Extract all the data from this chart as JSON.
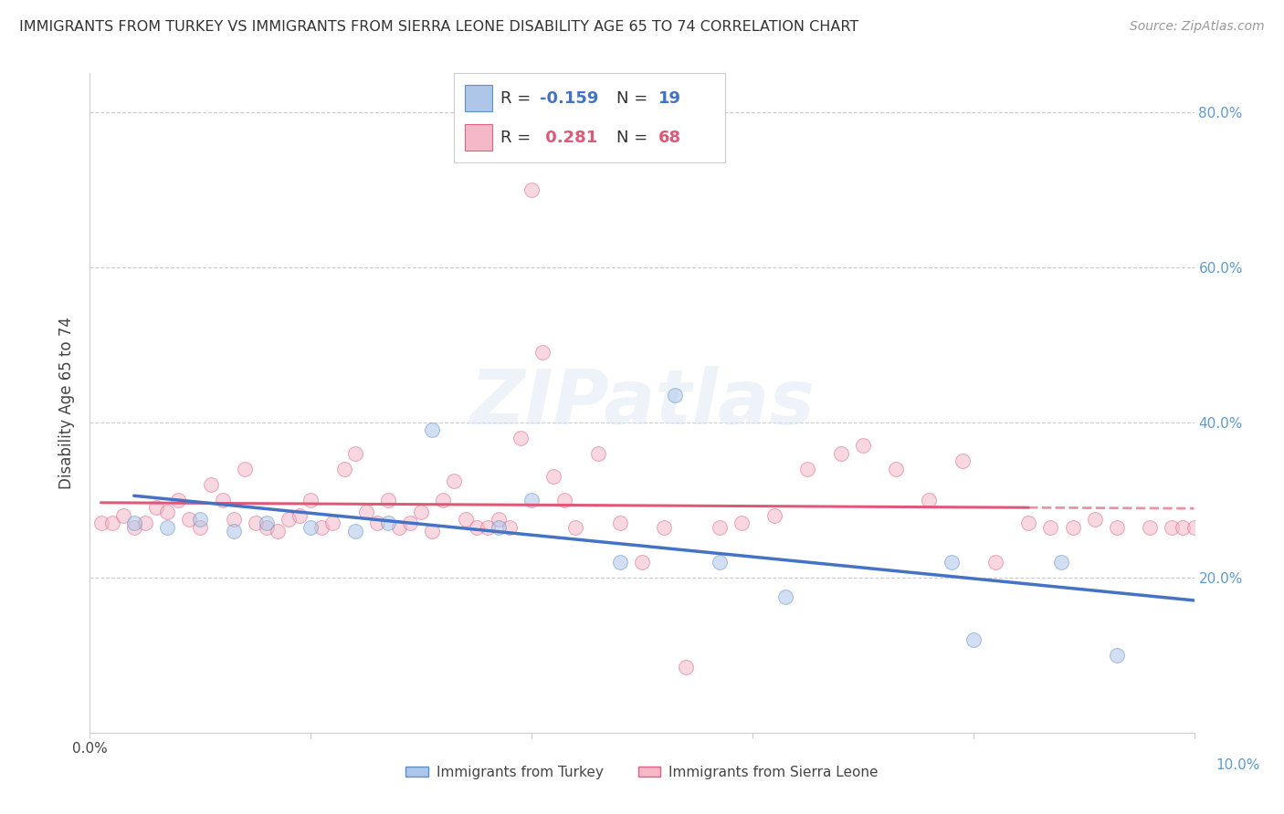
{
  "title": "IMMIGRANTS FROM TURKEY VS IMMIGRANTS FROM SIERRA LEONE DISABILITY AGE 65 TO 74 CORRELATION CHART",
  "source": "Source: ZipAtlas.com",
  "ylabel": "Disability Age 65 to 74",
  "watermark": "ZIPatlas",
  "turkey_color": "#aec6e8",
  "turkey_edge_color": "#5b8fcc",
  "turkey_line_color": "#4472c4",
  "sierra_color": "#f4b8c8",
  "sierra_edge_color": "#e06080",
  "sierra_line_color": "#e05878",
  "turkey_x": [
    0.004,
    0.007,
    0.01,
    0.013,
    0.016,
    0.02,
    0.024,
    0.027,
    0.031,
    0.037,
    0.04,
    0.048,
    0.053,
    0.057,
    0.063,
    0.078,
    0.08,
    0.088,
    0.093
  ],
  "turkey_y": [
    0.27,
    0.265,
    0.275,
    0.26,
    0.27,
    0.265,
    0.26,
    0.27,
    0.39,
    0.265,
    0.3,
    0.22,
    0.435,
    0.22,
    0.175,
    0.22,
    0.12,
    0.22,
    0.1
  ],
  "sierra_x": [
    0.001,
    0.002,
    0.003,
    0.004,
    0.005,
    0.006,
    0.007,
    0.008,
    0.009,
    0.01,
    0.011,
    0.012,
    0.013,
    0.014,
    0.015,
    0.016,
    0.017,
    0.018,
    0.019,
    0.02,
    0.021,
    0.022,
    0.023,
    0.024,
    0.025,
    0.026,
    0.027,
    0.028,
    0.029,
    0.03,
    0.031,
    0.032,
    0.033,
    0.034,
    0.035,
    0.036,
    0.037,
    0.038,
    0.039,
    0.04,
    0.041,
    0.042,
    0.043,
    0.044,
    0.046,
    0.048,
    0.05,
    0.052,
    0.054,
    0.057,
    0.059,
    0.062,
    0.065,
    0.068,
    0.07,
    0.073,
    0.076,
    0.079,
    0.082,
    0.085,
    0.087,
    0.089,
    0.091,
    0.093,
    0.096,
    0.098,
    0.099,
    0.1
  ],
  "sierra_y": [
    0.27,
    0.27,
    0.28,
    0.265,
    0.27,
    0.29,
    0.285,
    0.3,
    0.275,
    0.265,
    0.32,
    0.3,
    0.275,
    0.34,
    0.27,
    0.265,
    0.26,
    0.275,
    0.28,
    0.3,
    0.265,
    0.27,
    0.34,
    0.36,
    0.285,
    0.27,
    0.3,
    0.265,
    0.27,
    0.285,
    0.26,
    0.3,
    0.325,
    0.275,
    0.265,
    0.265,
    0.275,
    0.265,
    0.38,
    0.7,
    0.49,
    0.33,
    0.3,
    0.265,
    0.36,
    0.27,
    0.22,
    0.265,
    0.085,
    0.265,
    0.27,
    0.28,
    0.34,
    0.36,
    0.37,
    0.34,
    0.3,
    0.35,
    0.22,
    0.27,
    0.265,
    0.265,
    0.275,
    0.265,
    0.265,
    0.265,
    0.265,
    0.265
  ],
  "xmin": 0.0,
  "xmax": 0.1,
  "ymin": 0.0,
  "ymax": 0.85,
  "ytick_vals": [
    0.2,
    0.4,
    0.6,
    0.8
  ],
  "ytick_labels": [
    "20.0%",
    "40.0%",
    "60.0%",
    "80.0%"
  ],
  "background_color": "#ffffff",
  "title_fontsize": 11.5,
  "source_fontsize": 10,
  "ylabel_fontsize": 12,
  "tick_fontsize": 11,
  "legend_fontsize": 13,
  "scatter_size": 130,
  "scatter_alpha": 0.55,
  "grid_color": "#cccccc",
  "right_label_color": "#5b9bd5",
  "axis_color": "#cccccc"
}
